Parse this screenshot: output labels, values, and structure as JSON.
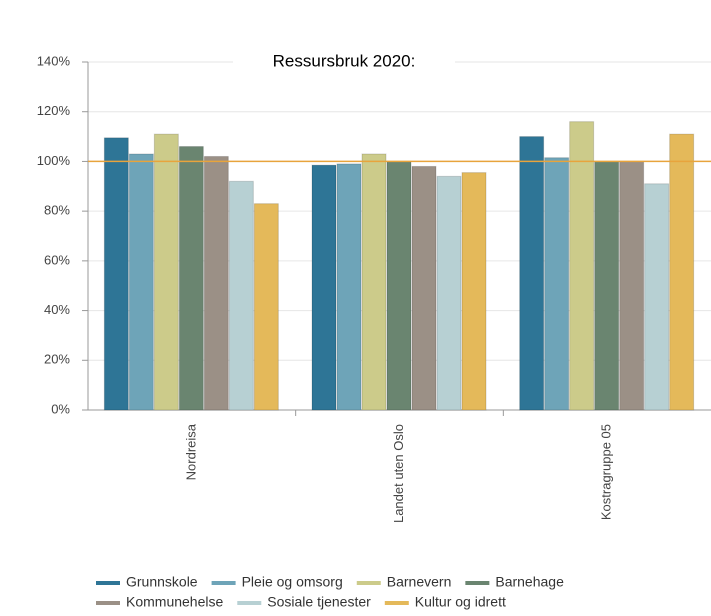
{
  "chart_data": {
    "type": "bar",
    "title": "Ressursbruk 2020:",
    "categories": [
      "Nordreisa",
      "Landet uten Oslo",
      "Kostragruppe 05"
    ],
    "series": [
      {
        "name": "Grunnskole",
        "color": "#2e7596",
        "values": [
          109.5,
          98.5,
          110
        ]
      },
      {
        "name": "Pleie og omsorg",
        "color": "#6ea4b8",
        "values": [
          103,
          99,
          101.5
        ]
      },
      {
        "name": "Barnevern",
        "color": "#cccb8a",
        "values": [
          111,
          103,
          116
        ]
      },
      {
        "name": "Barnehage",
        "color": "#6a8570",
        "values": [
          106,
          100,
          100
        ]
      },
      {
        "name": "Kommunehelse",
        "color": "#9b9086",
        "values": [
          102,
          98,
          100
        ]
      },
      {
        "name": "Sosiale tjenester",
        "color": "#b7d0d3",
        "values": [
          92,
          94,
          91
        ]
      },
      {
        "name": "Kultur og idrett",
        "color": "#e4b95a",
        "values": [
          83,
          95.5,
          111
        ]
      }
    ],
    "ylim": [
      0,
      140
    ],
    "yticks": [
      {
        "value": 0,
        "label": "0%"
      },
      {
        "value": 20,
        "label": "20%"
      },
      {
        "value": 40,
        "label": "40%"
      },
      {
        "value": 60,
        "label": "60%"
      },
      {
        "value": 80,
        "label": "80%"
      },
      {
        "value": 100,
        "label": "100%"
      },
      {
        "value": 120,
        "label": "120%"
      },
      {
        "value": 140,
        "label": "140%"
      }
    ],
    "reference_line": 100,
    "reference_color": "#e8a43c",
    "grid": true
  }
}
